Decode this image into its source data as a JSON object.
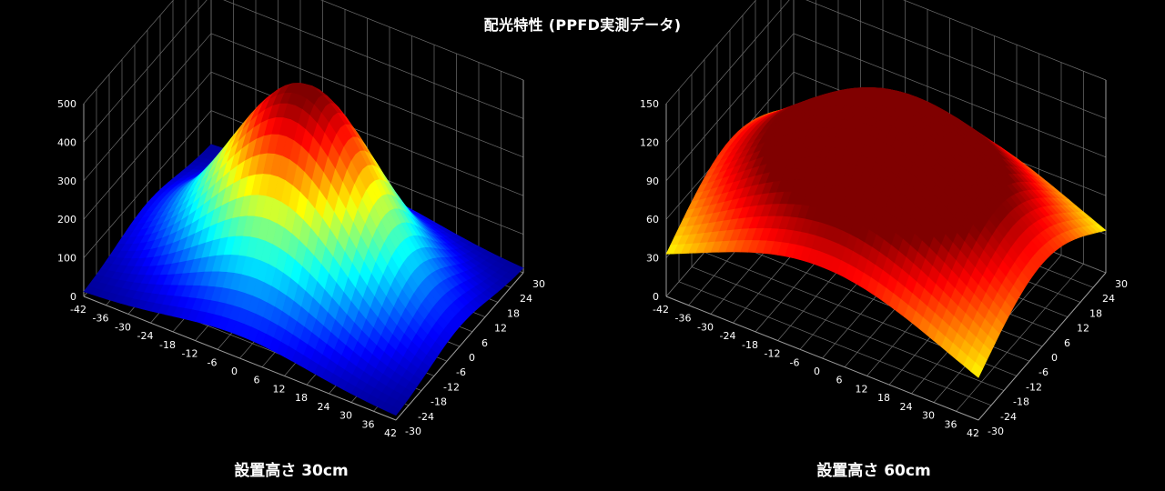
{
  "title": "配光特性 (PPFD実測データ)",
  "chart_data": [
    {
      "type": "surface",
      "caption": "設置高さ 30cm",
      "zlim": [
        0,
        500
      ],
      "z_ticks": [
        "0",
        "100",
        "200",
        "300",
        "400",
        "500"
      ],
      "x_ticks": [
        "-42",
        "-36",
        "-30",
        "-24",
        "-18",
        "-12",
        "-6",
        "0",
        "6",
        "12",
        "18",
        "24",
        "30",
        "36",
        "42"
      ],
      "y_ticks": [
        "-30",
        "-24",
        "-18",
        "-12",
        "-6",
        "0",
        "6",
        "12",
        "18",
        "24",
        "30"
      ],
      "peak": 510,
      "base": 8,
      "spread_x": 19,
      "spread_y": 14,
      "grid": true,
      "colormap": "jet"
    },
    {
      "type": "surface",
      "caption": "設置高さ 60cm",
      "zlim": [
        0,
        150
      ],
      "z_ticks": [
        "0",
        "30",
        "60",
        "90",
        "120",
        "150"
      ],
      "x_ticks": [
        "-42",
        "-36",
        "-30",
        "-24",
        "-18",
        "-12",
        "-6",
        "0",
        "6",
        "12",
        "18",
        "24",
        "30",
        "36",
        "42"
      ],
      "y_ticks": [
        "-30",
        "-24",
        "-18",
        "-12",
        "-6",
        "0",
        "6",
        "12",
        "18",
        "24",
        "30"
      ],
      "peak": 138,
      "base": 0,
      "spread_x": 34,
      "spread_y": 26,
      "grid": true,
      "colormap": "jet"
    }
  ]
}
